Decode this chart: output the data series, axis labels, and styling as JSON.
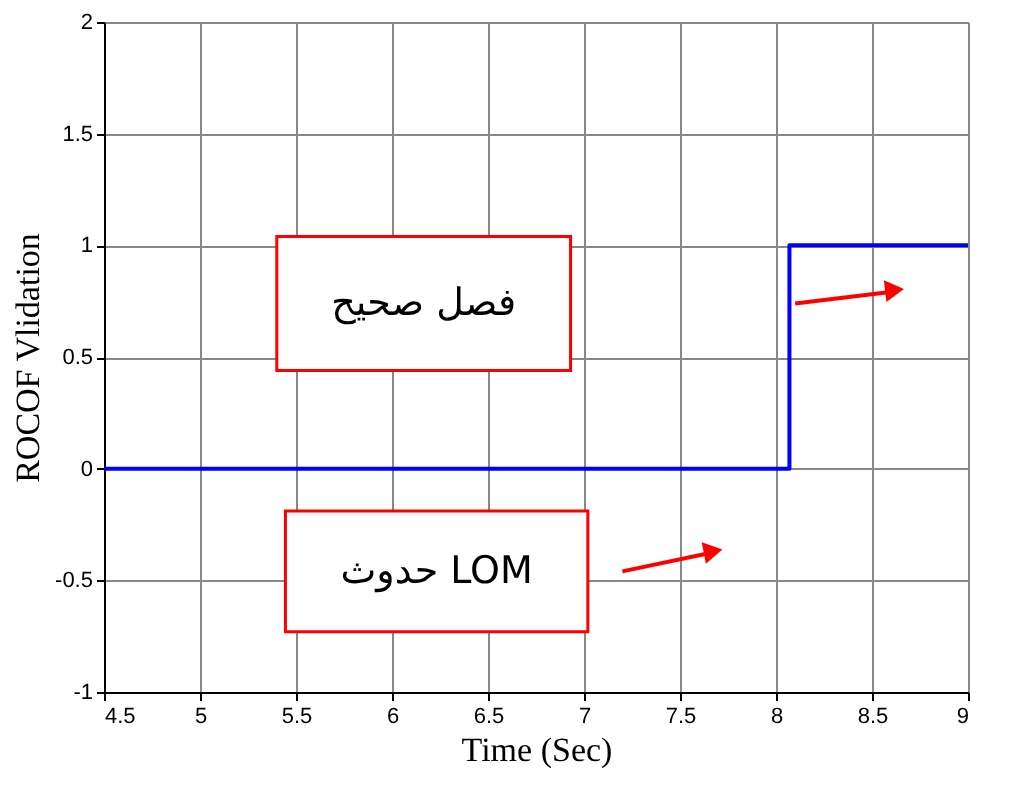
{
  "chart_data": {
    "type": "step",
    "xlabel": "Time (Sec)",
    "ylabel": "ROCOF Vlidation",
    "x": [
      4.5,
      8.07,
      9
    ],
    "series": [
      {
        "color": "#0000ff",
        "values": [
          0,
          1,
          1
        ]
      }
    ],
    "xlim": [
      4.5,
      9
    ],
    "xticks": [
      4.5,
      5,
      5.5,
      6,
      6.5,
      7,
      7.5,
      8,
      8.5,
      9
    ],
    "ylim": [
      -1,
      2
    ],
    "yticks": [
      -1,
      -0.5,
      0,
      0.5,
      1,
      1.5,
      2
    ],
    "grid": true,
    "annotations": [
      "فصل صحيح",
      "حدوث LOM"
    ]
  }
}
